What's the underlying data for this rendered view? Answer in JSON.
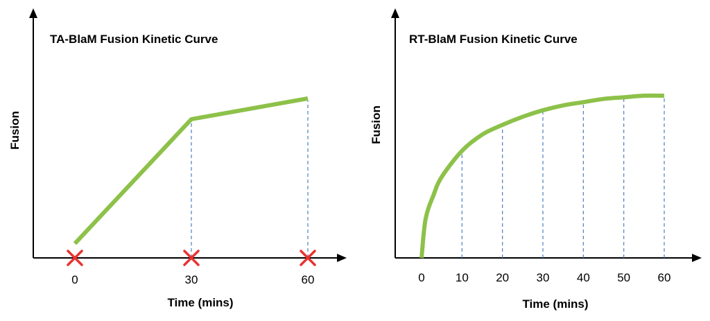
{
  "colors": {
    "curve": "#8dc149",
    "guide": "#4a7fc0",
    "marker": "#e8322f",
    "axis": "#000000"
  },
  "chart_data": [
    {
      "type": "line",
      "title": "TA-BlaM Fusion Kinetic Curve",
      "xlabel": "Time (mins)",
      "ylabel": "Fusion",
      "xlim": [
        0,
        60
      ],
      "ylim": [
        0,
        1
      ],
      "ticks": [
        "0",
        "30",
        "60"
      ],
      "tick_values": [
        0,
        30,
        60
      ],
      "markers": {
        "icon": "red-x-icon",
        "x": [
          0,
          30,
          60
        ]
      },
      "guides_x": [
        30,
        60
      ],
      "grid": false,
      "series": [
        {
          "x": [
            0,
            30,
            60
          ],
          "y": [
            0.09,
            0.87,
            1.0
          ]
        }
      ]
    },
    {
      "type": "line",
      "title": "RT-BlaM Fusion Kinetic Curve",
      "xlabel": "Time (mins)",
      "ylabel": "Fusion",
      "xlim": [
        0,
        60
      ],
      "ylim": [
        0,
        1
      ],
      "ticks": [
        "0",
        "10",
        "20",
        "30",
        "40",
        "50",
        "60"
      ],
      "tick_values": [
        0,
        10,
        20,
        30,
        40,
        50,
        60
      ],
      "guides_x": [
        10,
        20,
        30,
        40,
        50,
        60
      ],
      "grid": false,
      "series": [
        {
          "x": [
            0,
            1,
            3,
            5,
            10,
            15,
            20,
            25,
            30,
            35,
            40,
            45,
            50,
            55,
            60
          ],
          "y": [
            0.0,
            0.24,
            0.39,
            0.5,
            0.66,
            0.76,
            0.82,
            0.87,
            0.91,
            0.94,
            0.96,
            0.98,
            0.99,
            1.0,
            1.0
          ]
        }
      ]
    }
  ]
}
